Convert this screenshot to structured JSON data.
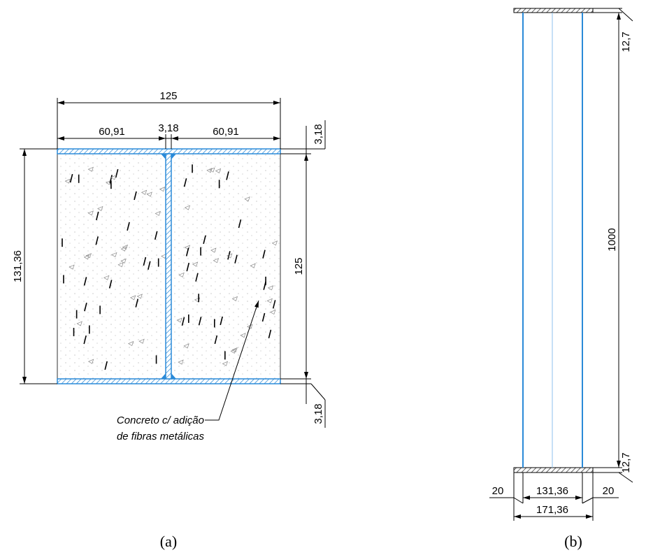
{
  "panel_a": {
    "caption": "(a)",
    "dimensions": {
      "total_width": "125",
      "left_flange": "60,91",
      "web": "3,18",
      "right_flange": "60,91",
      "top_flange_thickness": "3,18",
      "total_height": "131,36",
      "web_height": "125",
      "bottom_flange_thickness": "3,18"
    },
    "note": [
      "Concreto c/ adição",
      "de fibras metálicas"
    ]
  },
  "panel_b": {
    "caption": "(b)",
    "dimensions": {
      "top_plate": "12,7",
      "length": "1000",
      "bottom_plate": "12,7",
      "left_edge": "20",
      "section": "131,36",
      "right_edge": "20",
      "plate_width": "171,36"
    }
  }
}
